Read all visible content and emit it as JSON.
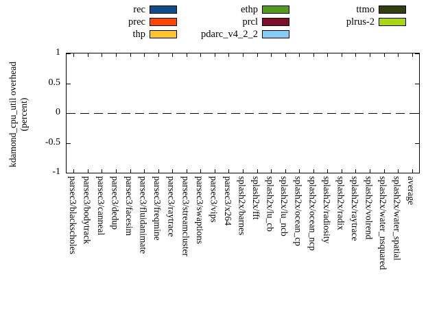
{
  "figure": {
    "ylabel_line1": "kdamond_cpu_util overhead",
    "ylabel_line2": "(percent)"
  },
  "legend": {
    "columns": [
      [
        {
          "label": "rec",
          "color": "#0d4d8c"
        },
        {
          "label": "prec",
          "color": "#ff4500"
        },
        {
          "label": "thp",
          "color": "#ffc62b"
        }
      ],
      [
        {
          "label": "ethp",
          "color": "#529c1a"
        },
        {
          "label": "prcl",
          "color": "#800d28"
        },
        {
          "label": "pdarc_v4_2_2",
          "color": "#85cdf8"
        }
      ],
      [
        {
          "label": "ttmo",
          "color": "#333e0d"
        },
        {
          "label": "plrus-2",
          "color": "#a9d60c"
        }
      ]
    ]
  },
  "chart_data": {
    "type": "bar",
    "title": "",
    "xlabel": "",
    "ylabel": "kdamond_cpu_util overhead (percent)",
    "ylim": [
      -1,
      1
    ],
    "yticks": [
      1,
      0.5,
      0,
      -0.5,
      -1
    ],
    "ytick_labels": [
      "1",
      "0.5",
      "0",
      "-0.5",
      "-1"
    ],
    "grid": false,
    "legend_position": "above-plot",
    "zero_line": {
      "value": 0,
      "style": "long-dash",
      "color": "#000000"
    },
    "categories": [
      "parsec3/blackscholes",
      "parsec3/bodytrack",
      "parsec3/canneal",
      "parsec3/dedup",
      "parsec3/facesim",
      "parsec3/fluidanimate",
      "parsec3/freqmine",
      "parsec3/raytrace",
      "parsec3/streamcluster",
      "parsec3/swaptions",
      "parsec3/vips",
      "parsec3/x264",
      "splash2x/barnes",
      "splash2x/fft",
      "splash2x/lu_cb",
      "splash2x/lu_ncb",
      "splash2x/ocean_cp",
      "splash2x/ocean_ncp",
      "splash2x/radiosity",
      "splash2x/radix",
      "splash2x/raytrace",
      "splash2x/volrend",
      "splash2x/water_nsquared",
      "splash2x/water_spatial",
      "average"
    ],
    "series": [
      {
        "name": "rec",
        "color": "#0d4d8c",
        "values": [
          0,
          0,
          0,
          0,
          0,
          0,
          0,
          0,
          0,
          0,
          0,
          0,
          0,
          0,
          0,
          0,
          0,
          0,
          0,
          0,
          0,
          0,
          0,
          0,
          0
        ]
      },
      {
        "name": "prec",
        "color": "#ff4500",
        "values": [
          0,
          0,
          0,
          0,
          0,
          0,
          0,
          0,
          0,
          0,
          0,
          0,
          0,
          0,
          0,
          0,
          0,
          0,
          0,
          0,
          0,
          0,
          0,
          0,
          0
        ]
      },
      {
        "name": "thp",
        "color": "#ffc62b",
        "values": [
          0,
          0,
          0,
          0,
          0,
          0,
          0,
          0,
          0,
          0,
          0,
          0,
          0,
          0,
          0,
          0,
          0,
          0,
          0,
          0,
          0,
          0,
          0,
          0,
          0
        ]
      },
      {
        "name": "ethp",
        "color": "#529c1a",
        "values": [
          0,
          0,
          0,
          0,
          0,
          0,
          0,
          0,
          0,
          0,
          0,
          0,
          0,
          0,
          0,
          0,
          0,
          0,
          0,
          0,
          0,
          0,
          0,
          0,
          0
        ]
      },
      {
        "name": "prcl",
        "color": "#800d28",
        "values": [
          0,
          0,
          0,
          0,
          0,
          0,
          0,
          0,
          0,
          0,
          0,
          0,
          0,
          0,
          0,
          0,
          0,
          0,
          0,
          0,
          0,
          0,
          0,
          0,
          0
        ]
      },
      {
        "name": "pdarc_v4_2_2",
        "color": "#85cdf8",
        "values": [
          0,
          0,
          0,
          0,
          0,
          0,
          0,
          0,
          0,
          0,
          0,
          0,
          0,
          0,
          0,
          0,
          0,
          0,
          0,
          0,
          0,
          0,
          0,
          0,
          0
        ]
      },
      {
        "name": "ttmo",
        "color": "#333e0d",
        "values": [
          0,
          0,
          0,
          0,
          0,
          0,
          0,
          0,
          0,
          0,
          0,
          0,
          0,
          0,
          0,
          0,
          0,
          0,
          0,
          0,
          0,
          0,
          0,
          0,
          0
        ]
      },
      {
        "name": "plrus-2",
        "color": "#a9d60c",
        "values": [
          0,
          0,
          0,
          0,
          0,
          0,
          0,
          0,
          0,
          0,
          0,
          0,
          0,
          0,
          0,
          0,
          0,
          0,
          0,
          0,
          0,
          0,
          0,
          0,
          0
        ]
      }
    ]
  }
}
